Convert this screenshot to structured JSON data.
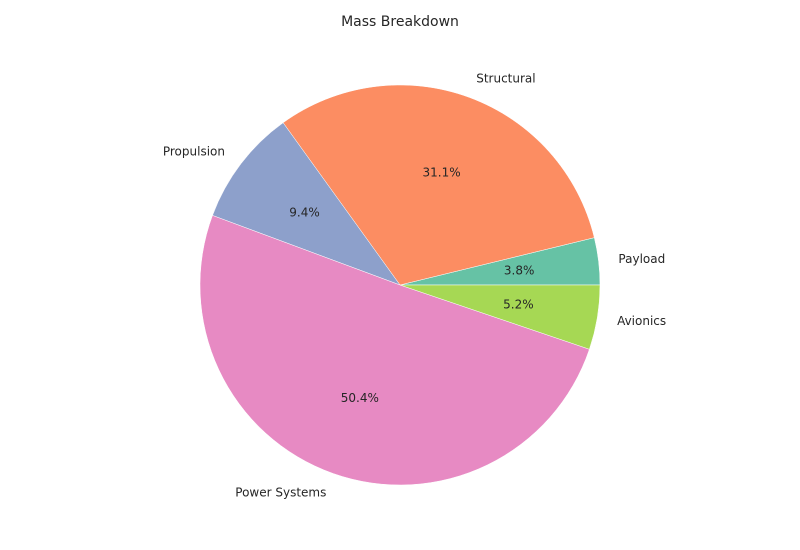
{
  "chart_data": {
    "type": "pie",
    "title": "Mass Breakdown",
    "slices": [
      {
        "label": "Payload",
        "value": 3.8,
        "pct_label": "3.8%",
        "color": "#66c2a5"
      },
      {
        "label": "Structural",
        "value": 31.1,
        "pct_label": "31.1%",
        "color": "#fc8d62"
      },
      {
        "label": "Propulsion",
        "value": 9.4,
        "pct_label": "9.4%",
        "color": "#8da0cb"
      },
      {
        "label": "Power Systems",
        "value": 50.4,
        "pct_label": "50.4%",
        "color": "#e78ac3"
      },
      {
        "label": "Avionics",
        "value": 5.2,
        "pct_label": "5.2%",
        "color": "#a6d854"
      }
    ],
    "start_angle_deg": 0,
    "direction": "counterclockwise",
    "legend": "none"
  }
}
